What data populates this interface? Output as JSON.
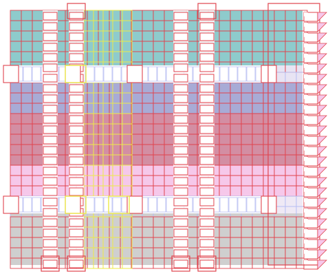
{
  "artwork": {
    "bands": [
      {
        "name": "teal",
        "color": "#8ecbcc"
      },
      {
        "name": "lavender",
        "color": "#a8abd6"
      },
      {
        "name": "rose",
        "color": "#d38ea3"
      },
      {
        "name": "pink",
        "color": "#f6c8ea"
      },
      {
        "name": "gray",
        "color": "#cfcfcf"
      }
    ],
    "line_colors": {
      "red": "#e0434e",
      "yellow": "#ecea4a",
      "blue": "#b6bdf2",
      "white": "#ffffff"
    }
  }
}
